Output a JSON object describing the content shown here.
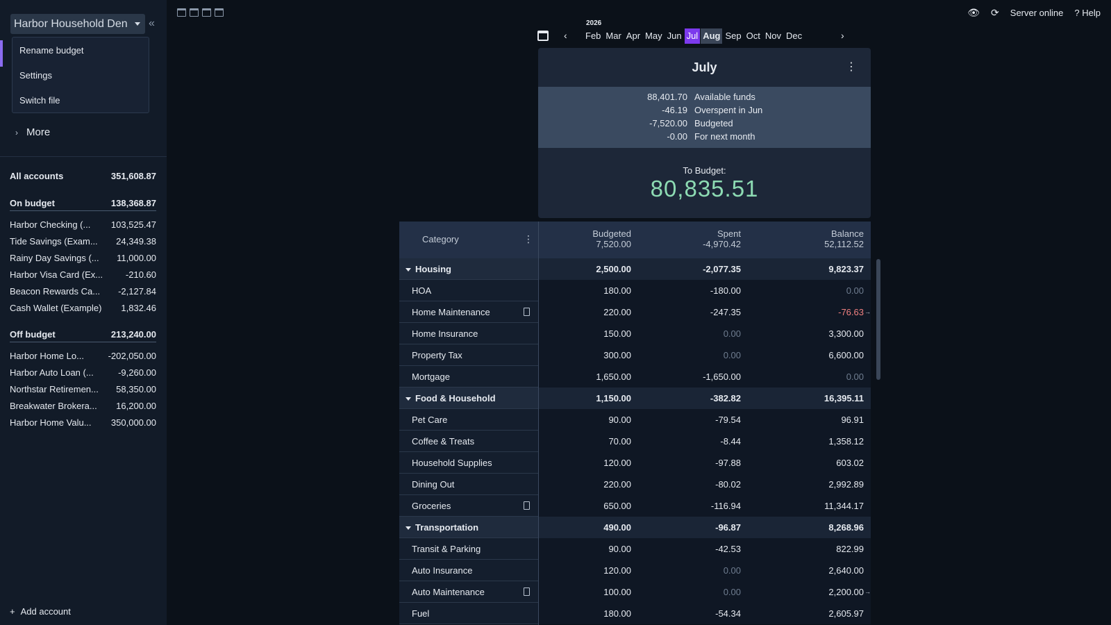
{
  "sidebar": {
    "budget_name": "Harbor Household Den",
    "menu": [
      "Rename budget",
      "Settings",
      "Switch file"
    ],
    "more_label": "More",
    "accounts": {
      "all": {
        "name": "All accounts",
        "balance": "351,608.87"
      },
      "on_budget": {
        "name": "On budget",
        "balance": "138,368.87"
      },
      "on_budget_items": [
        {
          "name": "Harbor Checking (...",
          "balance": "103,525.47"
        },
        {
          "name": "Tide Savings (Exam...",
          "balance": "24,349.38"
        },
        {
          "name": "Rainy Day Savings (...",
          "balance": "11,000.00"
        },
        {
          "name": "Harbor Visa Card (Ex...",
          "balance": "-210.60"
        },
        {
          "name": "Beacon Rewards Ca...",
          "balance": "-2,127.84"
        },
        {
          "name": "Cash Wallet (Example)",
          "balance": "1,832.46"
        }
      ],
      "off_budget": {
        "name": "Off budget",
        "balance": "213,240.00"
      },
      "off_budget_items": [
        {
          "name": "Harbor Home Lo...",
          "balance": "-202,050.00"
        },
        {
          "name": "Harbor Auto Loan (...",
          "balance": "-9,260.00"
        },
        {
          "name": "Northstar Retiremen...",
          "balance": "58,350.00"
        },
        {
          "name": "Breakwater Brokera...",
          "balance": "16,200.00"
        },
        {
          "name": "Harbor Home Valu...",
          "balance": "350,000.00"
        }
      ]
    },
    "add_account": "Add account"
  },
  "topbar": {
    "server_status": "Server online",
    "help": "Help"
  },
  "month_picker": {
    "year": "2026",
    "months": [
      "Feb",
      "Mar",
      "Apr",
      "May",
      "Jun",
      "Jul",
      "Aug",
      "Sep",
      "Oct",
      "Nov",
      "Dec"
    ],
    "current": "Jul",
    "selected": "Aug"
  },
  "summary": {
    "title": "July",
    "lines": [
      {
        "value": "88,401.70",
        "label": "Available funds"
      },
      {
        "value": "-46.19",
        "label": "Overspent in Jun"
      },
      {
        "value": "-7,520.00",
        "label": "Budgeted"
      },
      {
        "value": "-0.00",
        "label": "For next month"
      }
    ],
    "to_budget_label": "To Budget:",
    "to_budget_value": "80,835.51"
  },
  "table": {
    "header": {
      "category": "Category",
      "budgeted_label": "Budgeted",
      "budgeted_total": "7,520.00",
      "spent_label": "Spent",
      "spent_total": "-4,970.42",
      "balance_label": "Balance",
      "balance_total": "52,112.52"
    },
    "rows": [
      {
        "type": "group",
        "name": "Housing",
        "budgeted": "2,500.00",
        "spent": "-2,077.35",
        "balance": "9,823.37"
      },
      {
        "type": "item",
        "name": "HOA",
        "budgeted": "180.00",
        "spent": "-180.00",
        "balance": "0.00",
        "balance_dim": true
      },
      {
        "type": "item",
        "name": "Home Maintenance",
        "note": true,
        "budgeted": "220.00",
        "spent": "-247.35",
        "balance": "-76.63",
        "balance_neg": true,
        "arrow": true
      },
      {
        "type": "item",
        "name": "Home Insurance",
        "budgeted": "150.00",
        "spent": "0.00",
        "spent_dim": true,
        "balance": "3,300.00"
      },
      {
        "type": "item",
        "name": "Property Tax",
        "budgeted": "300.00",
        "spent": "0.00",
        "spent_dim": true,
        "balance": "6,600.00"
      },
      {
        "type": "item",
        "name": "Mortgage",
        "budgeted": "1,650.00",
        "spent": "-1,650.00",
        "balance": "0.00",
        "balance_dim": true
      },
      {
        "type": "group",
        "name": "Food & Household",
        "budgeted": "1,150.00",
        "spent": "-382.82",
        "balance": "16,395.11"
      },
      {
        "type": "item",
        "name": "Pet Care",
        "budgeted": "90.00",
        "spent": "-79.54",
        "balance": "96.91"
      },
      {
        "type": "item",
        "name": "Coffee & Treats",
        "budgeted": "70.00",
        "spent": "-8.44",
        "balance": "1,358.12"
      },
      {
        "type": "item",
        "name": "Household Supplies",
        "budgeted": "120.00",
        "spent": "-97.88",
        "balance": "603.02"
      },
      {
        "type": "item",
        "name": "Dining Out",
        "budgeted": "220.00",
        "spent": "-80.02",
        "balance": "2,992.89"
      },
      {
        "type": "item",
        "name": "Groceries",
        "note": true,
        "budgeted": "650.00",
        "spent": "-116.94",
        "balance": "11,344.17"
      },
      {
        "type": "group",
        "name": "Transportation",
        "budgeted": "490.00",
        "spent": "-96.87",
        "balance": "8,268.96"
      },
      {
        "type": "item",
        "name": "Transit & Parking",
        "budgeted": "90.00",
        "spent": "-42.53",
        "balance": "822.99"
      },
      {
        "type": "item",
        "name": "Auto Insurance",
        "budgeted": "120.00",
        "spent": "0.00",
        "spent_dim": true,
        "balance": "2,640.00"
      },
      {
        "type": "item",
        "name": "Auto Maintenance",
        "note": true,
        "budgeted": "100.00",
        "spent": "0.00",
        "spent_dim": true,
        "balance": "2,200.00",
        "arrow": true
      },
      {
        "type": "item",
        "name": "Fuel",
        "budgeted": "180.00",
        "spent": "-54.34",
        "balance": "2,605.97"
      }
    ]
  },
  "colors": {
    "accent": "#7c3aed",
    "to_budget": "#8ddbb3",
    "negative": "#f08080"
  }
}
